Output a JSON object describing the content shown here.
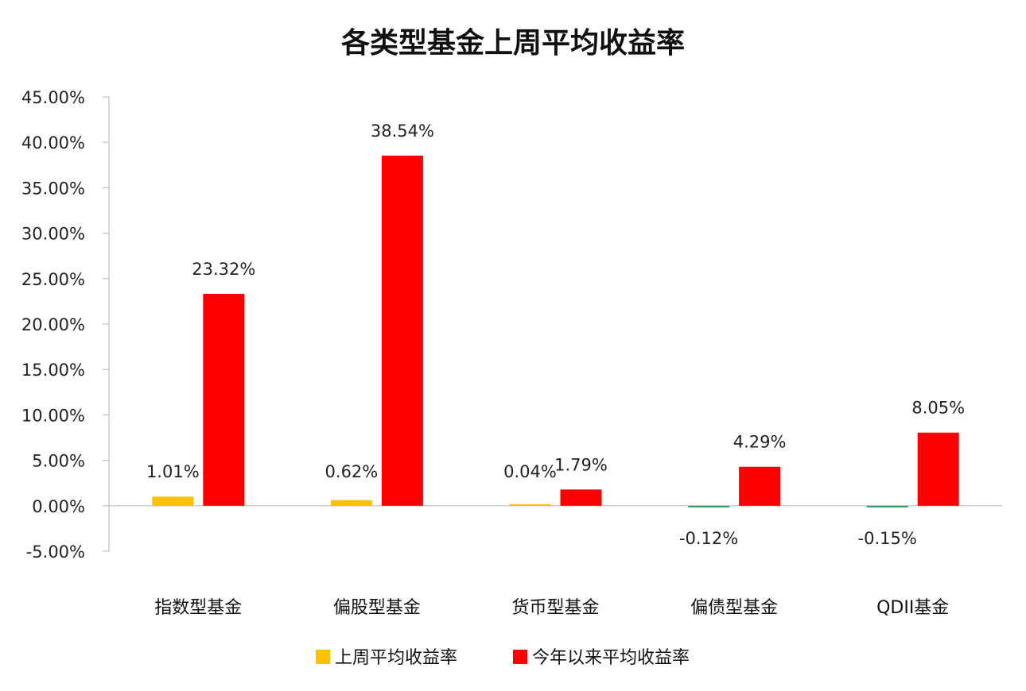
{
  "chart_data": {
    "type": "bar",
    "title": "各类型基金上周平均收益率",
    "categories": [
      "指数型基金",
      "偏股型基金",
      "货币型基金",
      "偏债型基金",
      "QDII基金"
    ],
    "series": [
      {
        "name": "上周平均收益率",
        "values": [
          1.01,
          0.62,
          0.04,
          -0.12,
          -0.15
        ],
        "labels": [
          "1.01%",
          "0.62%",
          "0.04%",
          "-0.12%",
          "-0.15%"
        ],
        "color": "#FFC000",
        "negative_color": "#2E9A5E"
      },
      {
        "name": "今年以来平均收益率",
        "values": [
          23.32,
          38.54,
          1.79,
          4.29,
          8.05
        ],
        "labels": [
          "23.32%",
          "38.54%",
          "1.79%",
          "4.29%",
          "8.05%"
        ],
        "color": "#FF0000"
      }
    ],
    "ylim": [
      -5,
      45
    ],
    "yticks": [
      45,
      40,
      35,
      30,
      25,
      20,
      15,
      10,
      5,
      0,
      -5
    ],
    "ytick_labels": [
      "45.00%",
      "40.00%",
      "35.00%",
      "30.00%",
      "25.00%",
      "20.00%",
      "15.00%",
      "10.00%",
      "5.00%",
      "0.00%",
      "-5.00%"
    ],
    "grid": false,
    "legend_position": "bottom"
  }
}
